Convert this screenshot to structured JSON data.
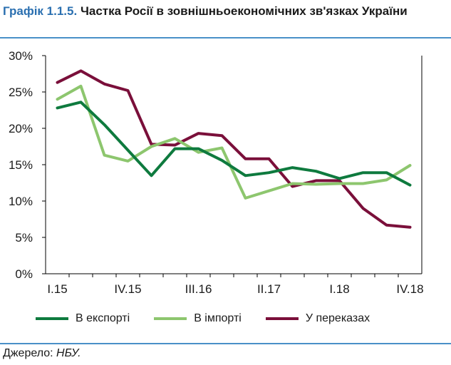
{
  "figure": {
    "label": "Графік 1.1.5.",
    "title": "Частка Росії в зовнішньоекономічних зв'язках України",
    "source_label": "Джерело:",
    "source_value": "НБУ."
  },
  "chart_data": {
    "type": "line",
    "title": "Частка Росії в зовнішньоекономічних зв'язках України",
    "xlabel": "",
    "ylabel": "",
    "x": [
      "I.15",
      "II.15",
      "III.15",
      "IV.15",
      "I.16",
      "II.16",
      "III.16",
      "IV.16",
      "I.17",
      "II.17",
      "III.17",
      "IV.17",
      "I.18",
      "II.18",
      "III.18",
      "IV.18"
    ],
    "xtick_labels": [
      "I.15",
      "",
      "",
      "IV.15",
      "",
      "",
      "III.16",
      "",
      "",
      "II.17",
      "",
      "",
      "I.18",
      "",
      "",
      "IV.18"
    ],
    "ylim": [
      0,
      30
    ],
    "yticks": [
      0,
      5,
      10,
      15,
      20,
      25,
      30
    ],
    "ytick_labels": [
      "0%",
      "5%",
      "10%",
      "15%",
      "20%",
      "25%",
      "30%"
    ],
    "grid": false,
    "legend": "bottom",
    "series": [
      {
        "name": "В експорті",
        "color": "#0e7a3e",
        "values": [
          22.8,
          23.6,
          20.5,
          17.0,
          13.5,
          17.2,
          17.2,
          15.6,
          13.5,
          13.9,
          14.6,
          14.1,
          13.1,
          13.9,
          13.9,
          12.2
        ]
      },
      {
        "name": "В імпорті",
        "color": "#8dc66e",
        "values": [
          24.0,
          25.8,
          16.3,
          15.5,
          17.5,
          18.6,
          16.7,
          17.3,
          10.4,
          11.4,
          12.4,
          12.3,
          12.4,
          12.4,
          12.9,
          14.9
        ]
      },
      {
        "name": "У переказах",
        "color": "#7a0f3a",
        "values": [
          26.3,
          27.9,
          26.1,
          25.2,
          17.8,
          17.7,
          19.3,
          19.0,
          15.8,
          15.8,
          12.0,
          12.8,
          12.8,
          9.0,
          6.7,
          6.4
        ]
      }
    ]
  }
}
